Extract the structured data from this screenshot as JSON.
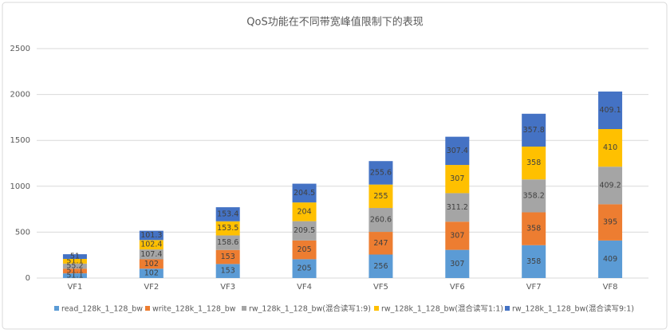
{
  "chart_data": {
    "type": "stacked_bar",
    "title": "QoS功能在不同带宽峰值限制下的表现",
    "categories": [
      "VF1",
      "VF2",
      "VF3",
      "VF4",
      "VF5",
      "VF6",
      "VF7",
      "VF8"
    ],
    "series": [
      {
        "name": "read_128k_1_128_bw",
        "color": "#5b9bd5",
        "values": [
          51.1,
          102,
          153,
          205,
          256,
          307,
          358,
          409
        ]
      },
      {
        "name": "write_128k_1_128_bw",
        "color": "#ed7d31",
        "values": [
          51.1,
          102,
          153,
          205,
          247,
          307,
          358,
          395
        ]
      },
      {
        "name": "rw_128k_1_128_bw(混合读写1:9)",
        "color": "#a5a5a5",
        "values": [
          55.2,
          107.4,
          158.6,
          209.5,
          260.6,
          311.2,
          358.2,
          409.2
        ]
      },
      {
        "name": "rw_128k_1_128_bw(混合读写1:1)",
        "color": "#ffc000",
        "values": [
          51.1,
          102.4,
          153.5,
          204,
          255,
          307,
          358,
          410
        ]
      },
      {
        "name": "rw_128k_1_128_bw(混合读写9:1)",
        "color": "#4472c4",
        "values": [
          51,
          101.3,
          153.4,
          204.5,
          255.6,
          307.4,
          357.8,
          409.1
        ]
      }
    ],
    "ylim": [
      0,
      2500
    ],
    "yticks": [
      0,
      500,
      1000,
      1500,
      2000,
      2500
    ],
    "grid": true,
    "legend": "bottom"
  }
}
